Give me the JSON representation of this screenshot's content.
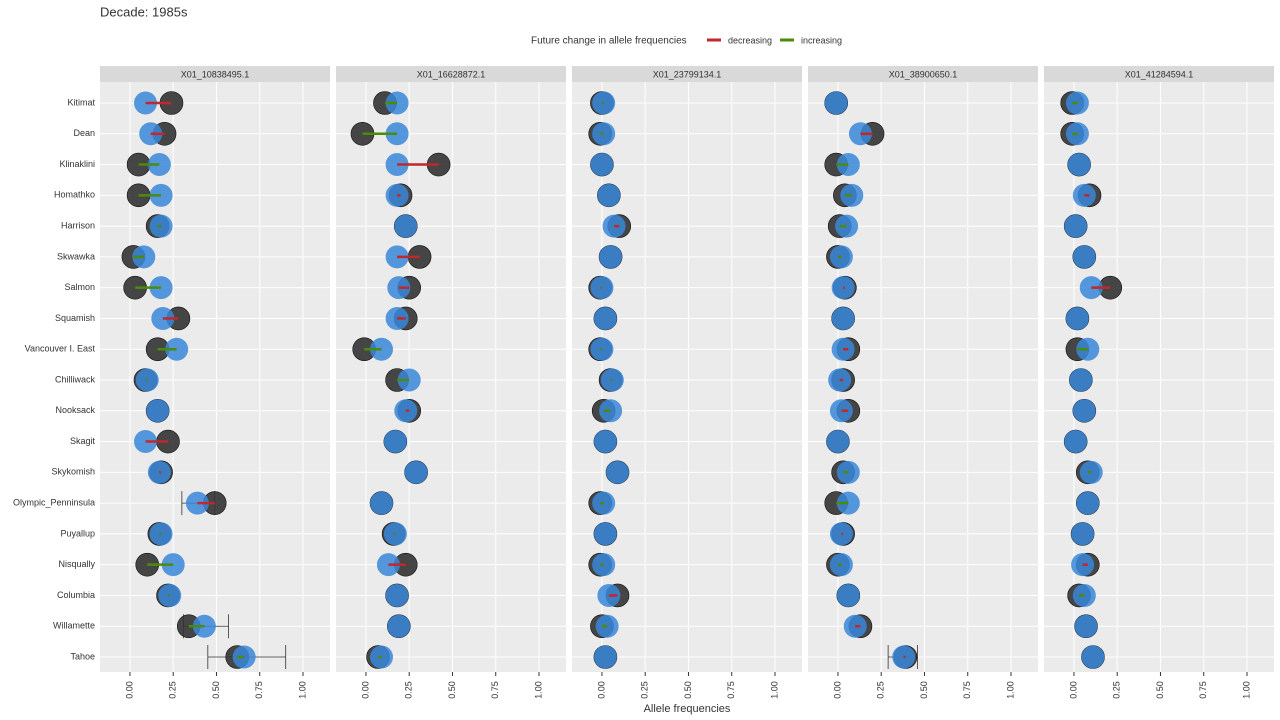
{
  "chart_data": {
    "type": "dotplot",
    "title": "Decade: 1985s",
    "legend_title": "Future change in allele frequencies",
    "series": [
      {
        "name": "decreasing",
        "color": "#c0282b"
      },
      {
        "name": "increasing",
        "color": "#4a8c0a"
      }
    ],
    "current_color": "#333333",
    "future_color": "#3a87d8",
    "x_label": "Allele frequencies",
    "categories": [
      "Kitimat",
      "Dean",
      "Klinaklini",
      "Homathko",
      "Harrison",
      "Skwawka",
      "Salmon",
      "Squamish",
      "Vancouver I. East",
      "Chilliwack",
      "Nooksack",
      "Skagit",
      "Skykomish",
      "Olympic_Penninsula",
      "Puyallup",
      "Nisqually",
      "Columbia",
      "Willamette",
      "Tahoe"
    ],
    "xlim": [
      -0.173,
      1.156
    ],
    "xticks": [
      {
        "value": 0,
        "label": "0.00"
      },
      {
        "value": 0.25,
        "label": "0.25"
      },
      {
        "value": 0.5,
        "label": "0.50"
      },
      {
        "value": 0.75,
        "label": "0.75"
      },
      {
        "value": 1,
        "label": "1.00"
      }
    ],
    "grid": true,
    "facets": [
      {
        "title": "X01_10838495.1",
        "current": [
          0.24,
          0.2,
          0.05,
          0.05,
          0.16,
          0.02,
          0.03,
          0.28,
          0.16,
          0.09,
          0.16,
          0.22,
          0.18,
          0.49,
          0.17,
          0.1,
          0.22,
          0.34,
          0.62
        ],
        "future": [
          0.09,
          0.12,
          0.17,
          0.18,
          0.18,
          0.08,
          0.18,
          0.19,
          0.27,
          0.1,
          0.16,
          0.09,
          0.17,
          0.39,
          0.18,
          0.25,
          0.23,
          0.43,
          0.66
        ],
        "interval_low": [
          null,
          null,
          null,
          null,
          null,
          null,
          null,
          null,
          null,
          null,
          null,
          null,
          null,
          0.3,
          null,
          null,
          null,
          0.31,
          0.45
        ],
        "interval_high": [
          null,
          null,
          null,
          null,
          null,
          null,
          null,
          null,
          null,
          null,
          null,
          null,
          null,
          0.49,
          null,
          null,
          null,
          0.57,
          0.9
        ]
      },
      {
        "title": "X01_16628872.1",
        "current": [
          0.11,
          -0.02,
          0.42,
          0.2,
          0.23,
          0.31,
          0.25,
          0.23,
          -0.01,
          0.18,
          0.25,
          0.17,
          0.29,
          0.09,
          0.16,
          0.23,
          0.18,
          0.19,
          0.07
        ],
        "future": [
          0.18,
          0.18,
          0.18,
          0.18,
          0.23,
          0.18,
          0.19,
          0.18,
          0.09,
          0.25,
          0.23,
          0.17,
          0.29,
          0.09,
          0.17,
          0.13,
          0.18,
          0.19,
          0.09
        ]
      },
      {
        "title": "X01_23799134.1",
        "current": [
          0.0,
          -0.01,
          0.0,
          0.04,
          0.1,
          0.05,
          -0.01,
          0.02,
          -0.01,
          0.05,
          0.01,
          0.02,
          0.09,
          -0.01,
          0.02,
          -0.01,
          0.09,
          0.0,
          0.02
        ],
        "future": [
          0.01,
          0.01,
          0.0,
          0.04,
          0.07,
          0.05,
          0.0,
          0.02,
          0.0,
          0.06,
          0.05,
          0.02,
          0.09,
          0.01,
          0.02,
          0.01,
          0.04,
          0.03,
          0.02
        ]
      },
      {
        "title": "X01_38900650.1",
        "current": [
          -0.01,
          0.2,
          -0.01,
          0.04,
          0.01,
          0.0,
          0.04,
          0.03,
          0.06,
          0.03,
          0.06,
          0.0,
          0.03,
          -0.01,
          0.03,
          0.0,
          0.06,
          0.13,
          0.39
        ],
        "future": [
          -0.01,
          0.13,
          0.06,
          0.08,
          0.05,
          0.02,
          0.03,
          0.03,
          0.03,
          0.01,
          0.02,
          0.0,
          0.06,
          0.06,
          0.02,
          0.02,
          0.06,
          0.1,
          0.38
        ],
        "interval_low": [
          null,
          null,
          null,
          null,
          null,
          null,
          null,
          null,
          null,
          null,
          null,
          null,
          null,
          null,
          null,
          null,
          null,
          null,
          0.29
        ],
        "interval_high": [
          null,
          null,
          null,
          null,
          null,
          null,
          null,
          null,
          null,
          null,
          null,
          null,
          null,
          null,
          null,
          null,
          null,
          null,
          0.46
        ]
      },
      {
        "title": "X01_41284594.1",
        "current": [
          -0.01,
          -0.01,
          0.03,
          0.09,
          0.01,
          0.06,
          0.21,
          0.02,
          0.02,
          0.04,
          0.06,
          0.01,
          0.08,
          0.08,
          0.05,
          0.08,
          0.03,
          0.07,
          0.11
        ],
        "future": [
          0.02,
          0.02,
          0.03,
          0.06,
          0.01,
          0.06,
          0.1,
          0.02,
          0.08,
          0.04,
          0.06,
          0.01,
          0.1,
          0.08,
          0.05,
          0.05,
          0.06,
          0.07,
          0.11
        ]
      }
    ]
  }
}
